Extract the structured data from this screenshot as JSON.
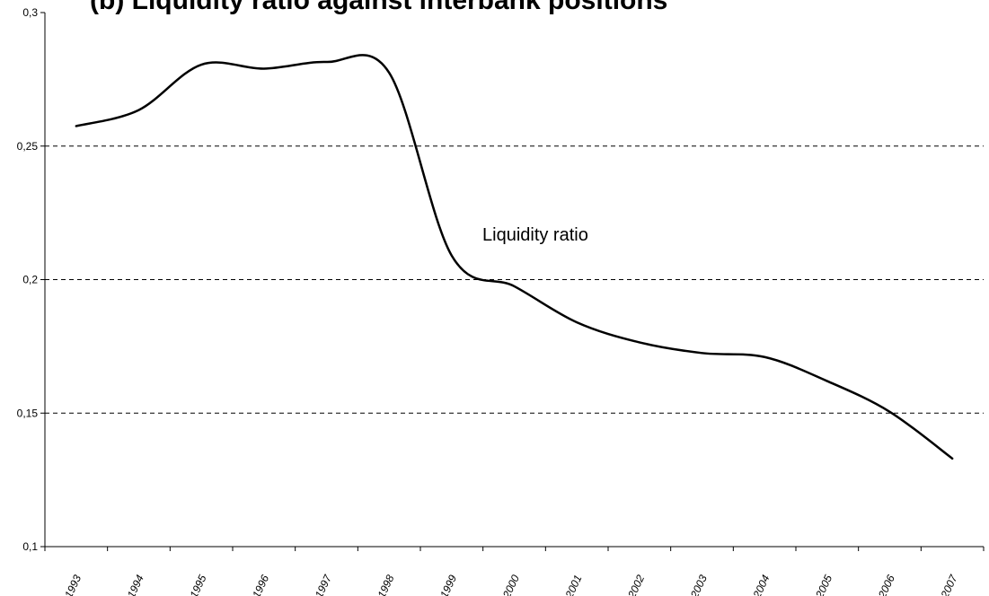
{
  "chart_data": {
    "type": "line",
    "title": "(b) Liquidity ratio against interbank positions",
    "xlabel": "",
    "ylabel": "",
    "categories": [
      "1993",
      "1994",
      "1995",
      "1996",
      "1997",
      "1998",
      "1999",
      "2000",
      "2001",
      "2002",
      "2003",
      "2004",
      "2005",
      "2006",
      "2007"
    ],
    "ylim": [
      0.1,
      0.3
    ],
    "y_ticks": [
      "0,1",
      "0,15",
      "0,2",
      "0,25",
      "0,3"
    ],
    "y_tick_values": [
      0.1,
      0.15,
      0.2,
      0.25,
      0.3
    ],
    "grid": "horizontal dashed",
    "legend": "none",
    "annotation": "Liquidity ratio",
    "series": [
      {
        "values": [
          0.2575,
          0.2635,
          0.2805,
          0.279,
          0.2815,
          0.2775,
          0.209,
          0.1975,
          0.184,
          0.1765,
          0.1725,
          0.171,
          0.162,
          0.1505,
          0.133
        ],
        "color": "#000000"
      }
    ]
  }
}
